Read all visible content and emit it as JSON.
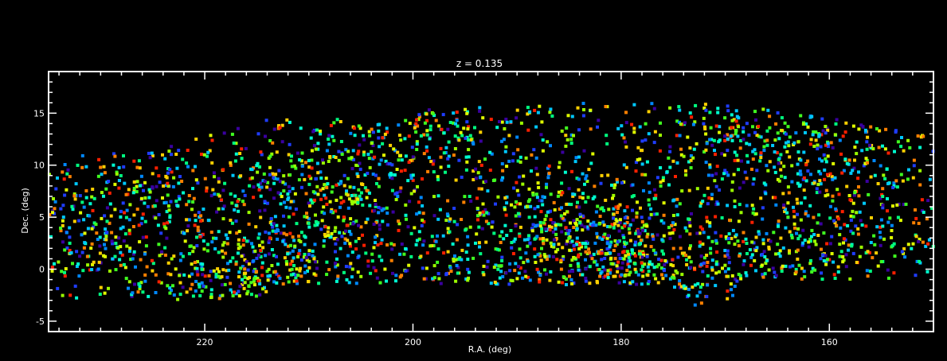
{
  "chart_data": {
    "type": "scatter",
    "title": "z = 0.135",
    "xlabel": "R.A. (deg)",
    "ylabel": "Dec. (deg)",
    "xlim": [
      235,
      150
    ],
    "ylim": [
      -6,
      19
    ],
    "xticks": [
      220,
      200,
      180,
      160
    ],
    "yticks": [
      -5,
      0,
      5,
      10,
      15
    ],
    "x_minor_step": 2,
    "y_minor_step": 1,
    "grid": false,
    "marker": "square",
    "clusters": [
      {
        "ra": 217,
        "dec": -0.5,
        "n": 160,
        "s": 3.0
      },
      {
        "ra": 212,
        "dec": 1.5,
        "n": 90,
        "s": 3.2
      },
      {
        "ra": 206,
        "dec": 10.0,
        "n": 140,
        "s": 3.2
      },
      {
        "ra": 210,
        "dec": 6.0,
        "n": 90,
        "s": 3.5
      },
      {
        "ra": 200,
        "dec": 1.5,
        "n": 90,
        "s": 4.0
      },
      {
        "ra": 195,
        "dec": 13.5,
        "n": 60,
        "s": 2.5
      },
      {
        "ra": 186,
        "dec": 5.0,
        "n": 150,
        "s": 3.0
      },
      {
        "ra": 180,
        "dec": 3.0,
        "n": 170,
        "s": 2.5
      },
      {
        "ra": 180,
        "dec": -1.5,
        "n": 80,
        "s": 2.5
      },
      {
        "ra": 173,
        "dec": 1.0,
        "n": 80,
        "s": 3.0
      },
      {
        "ra": 170,
        "dec": 13.0,
        "n": 60,
        "s": 2.0
      },
      {
        "ra": 162,
        "dec": 12.0,
        "n": 120,
        "s": 3.0
      },
      {
        "ra": 158,
        "dec": 4.0,
        "n": 100,
        "s": 3.5
      },
      {
        "ra": 230,
        "dec": 4.0,
        "n": 110,
        "s": 3.5
      },
      {
        "ra": 224,
        "dec": 8.0,
        "n": 70,
        "s": 3.0
      },
      {
        "ra": 190,
        "dec": -1.0,
        "n": 80,
        "s": 3.5
      },
      {
        "ra": 165,
        "dec": 0.0,
        "n": 70,
        "s": 3.0
      }
    ],
    "uniform_points": 1500,
    "dec_min_by_ra": [
      [
        235,
        -3
      ],
      [
        215,
        -3
      ],
      [
        213,
        -1.5
      ],
      [
        175,
        -1.5
      ],
      [
        174,
        -3.5
      ],
      [
        170,
        -3.5
      ],
      [
        168,
        -1
      ],
      [
        150,
        -1
      ]
    ],
    "dec_max_by_ra": [
      [
        235,
        11
      ],
      [
        225,
        11.5
      ],
      [
        214,
        14.5
      ],
      [
        205,
        14.5
      ],
      [
        198,
        15.5
      ],
      [
        185,
        16
      ],
      [
        172,
        16
      ],
      [
        167,
        15.5
      ],
      [
        160,
        14.5
      ],
      [
        150,
        13
      ]
    ],
    "palette": [
      "#3a00a0",
      "#1f3dff",
      "#0088ff",
      "#00c8ff",
      "#00ffd0",
      "#00ff80",
      "#40ff20",
      "#9cff00",
      "#e0ff00",
      "#ffd000",
      "#ff8000",
      "#ff2000"
    ],
    "seed": 1357
  }
}
